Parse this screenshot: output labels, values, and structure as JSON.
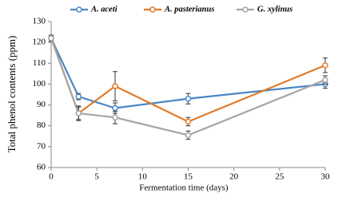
{
  "chart_data": {
    "type": "line",
    "x_label": "Fermentation time  (days)",
    "y_label": "Total phenol contents (ppm)",
    "x": [
      0,
      3,
      7,
      15,
      30
    ],
    "xlim": [
      0,
      30
    ],
    "xticks": [
      0,
      5,
      10,
      15,
      20,
      25,
      30
    ],
    "ylim": [
      60,
      130
    ],
    "yticks": [
      60,
      70,
      80,
      90,
      100,
      110,
      120,
      130
    ],
    "grid": false,
    "legend": "top",
    "series": [
      {
        "name": "A. aceti",
        "color": "#4a86c5",
        "values": [
          122,
          94,
          88.5,
          93,
          100
        ],
        "errors": [
          1.5,
          1.5,
          2.5,
          2.5,
          2
        ]
      },
      {
        "name": "A. pasterianus",
        "color": "#e07b2a",
        "values": [
          122,
          86,
          99,
          82,
          109
        ],
        "errors": [
          1,
          3,
          7,
          2,
          3.5
        ]
      },
      {
        "name": "G. xylinus",
        "color": "#a5a5a5",
        "values": [
          122,
          86,
          84,
          75.5,
          102
        ],
        "errors": [
          1,
          3.5,
          3,
          2,
          2
        ]
      }
    ]
  }
}
